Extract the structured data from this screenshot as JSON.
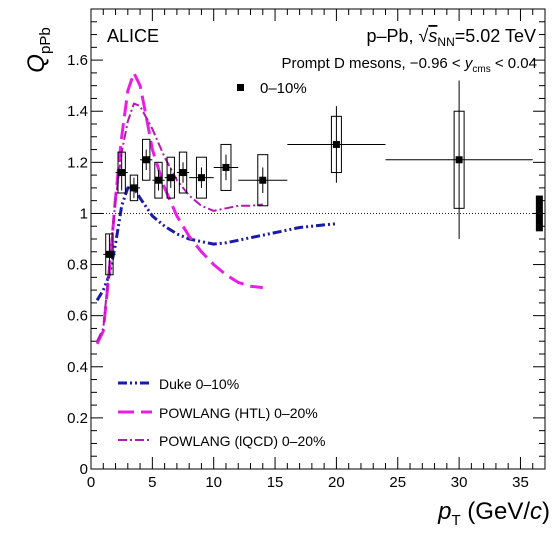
{
  "chart_data": {
    "type": "scatter",
    "title": "",
    "xlabel_main": "p",
    "xlabel_sub": "T",
    "xlabel_unit_open": " (GeV/",
    "xlabel_unit_var": "c",
    "xlabel_unit_close": ")",
    "ylabel_main": "Q",
    "ylabel_sub": "pPb",
    "xlim": [
      0,
      37
    ],
    "ylim": [
      0,
      1.8
    ],
    "xticks": [
      0,
      5,
      10,
      15,
      20,
      25,
      30,
      35
    ],
    "yticks": [
      0,
      0.2,
      0.4,
      0.6,
      0.8,
      1,
      1.2,
      1.4,
      1.6
    ],
    "grid": false,
    "reference_line_y": 1,
    "global_uncertainty_box": {
      "x": 36.5,
      "ylow": 0.93,
      "yhigh": 1.07
    },
    "annotations": {
      "experiment": "ALICE",
      "system_pre": "p–Pb, ",
      "sqrt_s_label": "s",
      "sqrt_s_sub": "NN",
      "system_post": "=5.02 TeV",
      "selection_pre": "Prompt D mesons, −0.96 < ",
      "selection_var": "y",
      "selection_sub": "cms",
      "selection_post": " < 0.04"
    },
    "legend_top": {
      "marker": "square",
      "label": "0–10%"
    },
    "legend_bottom": [
      {
        "label": "Duke 0–10%",
        "color": "#1a1aa8",
        "style": "dash-dot-dot"
      },
      {
        "label": "POWLANG (HTL) 0–20%",
        "color": "#e81ee8",
        "style": "long-dash"
      },
      {
        "label": "POWLANG (lQCD) 0–20%",
        "color": "#b21ab2",
        "style": "dash-dot"
      }
    ],
    "series": [
      {
        "name": "0–10%",
        "color": "#000000",
        "points": [
          {
            "x": 1.5,
            "y": 0.84,
            "xlow": 1.0,
            "xhigh": 2.0,
            "stat": 0.08,
            "syst": 0.08
          },
          {
            "x": 2.5,
            "y": 1.16,
            "xlow": 2.0,
            "xhigh": 3.0,
            "stat": 0.07,
            "syst": 0.08
          },
          {
            "x": 3.5,
            "y": 1.1,
            "xlow": 3.0,
            "xhigh": 4.0,
            "stat": 0.04,
            "syst": 0.05
          },
          {
            "x": 4.5,
            "y": 1.21,
            "xlow": 4.0,
            "xhigh": 5.0,
            "stat": 0.04,
            "syst": 0.08
          },
          {
            "x": 5.5,
            "y": 1.13,
            "xlow": 5.0,
            "xhigh": 6.0,
            "stat": 0.04,
            "syst": 0.07
          },
          {
            "x": 6.5,
            "y": 1.14,
            "xlow": 6.0,
            "xhigh": 7.0,
            "stat": 0.04,
            "syst": 0.08
          },
          {
            "x": 7.5,
            "y": 1.16,
            "xlow": 7.0,
            "xhigh": 8.0,
            "stat": 0.04,
            "syst": 0.08
          },
          {
            "x": 9.0,
            "y": 1.14,
            "xlow": 8.0,
            "xhigh": 10.0,
            "stat": 0.04,
            "syst": 0.08
          },
          {
            "x": 11.0,
            "y": 1.18,
            "xlow": 10.0,
            "xhigh": 12.0,
            "stat": 0.05,
            "syst": 0.09
          },
          {
            "x": 14.0,
            "y": 1.13,
            "xlow": 12.0,
            "xhigh": 16.0,
            "stat": 0.05,
            "syst": 0.1
          },
          {
            "x": 20.0,
            "y": 1.27,
            "xlow": 16.0,
            "xhigh": 24.0,
            "stat": 0.15,
            "syst": 0.11
          },
          {
            "x": 30.0,
            "y": 1.21,
            "xlow": 24.0,
            "xhigh": 36.0,
            "stat": 0.31,
            "syst": 0.19
          }
        ]
      }
    ],
    "models": [
      {
        "name": "Duke 0–10%",
        "color": "#1a1aa8",
        "style": "dash-dot-dot",
        "x": [
          0.5,
          1.0,
          1.5,
          2.0,
          2.5,
          3.0,
          3.5,
          4.0,
          5.0,
          6.0,
          7.0,
          8.0,
          9.0,
          10.0,
          11.0,
          12.0,
          13.0,
          14.0,
          15.0,
          16.0,
          17.0,
          18.0,
          19.0,
          20.0
        ],
        "y": [
          0.66,
          0.7,
          0.76,
          0.88,
          1.03,
          1.1,
          1.1,
          1.06,
          0.99,
          0.95,
          0.92,
          0.9,
          0.89,
          0.88,
          0.885,
          0.895,
          0.905,
          0.915,
          0.925,
          0.935,
          0.945,
          0.95,
          0.955,
          0.96
        ]
      },
      {
        "name": "POWLANG (HTL) 0–20%",
        "color": "#e81ee8",
        "style": "long-dash",
        "x": [
          0.5,
          1.0,
          1.5,
          2.0,
          2.5,
          3.0,
          3.5,
          4.0,
          4.5,
          5.0,
          6.0,
          7.0,
          8.0,
          9.0,
          10.0,
          11.0,
          12.0,
          13.0,
          14.0
        ],
        "y": [
          0.49,
          0.54,
          0.78,
          1.06,
          1.3,
          1.48,
          1.55,
          1.5,
          1.38,
          1.25,
          1.1,
          0.99,
          0.91,
          0.85,
          0.8,
          0.76,
          0.73,
          0.715,
          0.71
        ]
      },
      {
        "name": "POWLANG (lQCD) 0–20%",
        "color": "#b21ab2",
        "style": "dash-dot",
        "x": [
          0.5,
          1.0,
          1.5,
          2.0,
          2.5,
          3.0,
          3.5,
          4.0,
          5.0,
          6.0,
          7.0,
          8.0,
          9.0,
          10.0,
          11.0,
          12.0,
          13.0,
          14.0
        ],
        "y": [
          0.5,
          0.55,
          0.8,
          1.05,
          1.24,
          1.36,
          1.43,
          1.42,
          1.33,
          1.22,
          1.13,
          1.07,
          1.03,
          1.01,
          1.02,
          1.03,
          1.03,
          1.035
        ]
      }
    ]
  }
}
